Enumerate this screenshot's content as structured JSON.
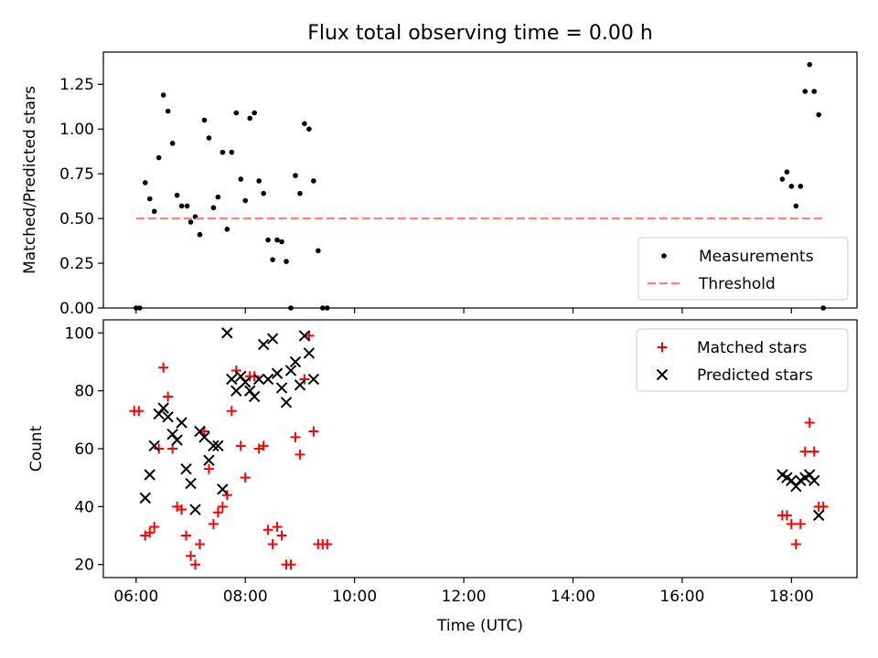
{
  "title": "Flux total observing time = 0.00 h",
  "colors": {
    "measurements": "#000000",
    "threshold": "#ff7f7f",
    "matched": "#ff0000",
    "predicted": "#000000"
  },
  "chart_data": [
    {
      "type": "scatter",
      "title": "Flux total observing time = 0.00 h",
      "ylabel": "Matched/Predicted stars",
      "xlabel": "",
      "xlim": [
        "05:24",
        "19:12"
      ],
      "ylim": [
        0,
        1.43
      ],
      "yticks": [
        "0.00",
        "0.25",
        "0.50",
        "0.75",
        "1.00",
        "1.25"
      ],
      "legend_position": "lower-right",
      "series": [
        {
          "name": "Measurements",
          "marker": "dot",
          "points": [
            [
              "06:00",
              0.0
            ],
            [
              "06:04",
              0.0
            ],
            [
              "06:10",
              0.7
            ],
            [
              "06:15",
              0.61
            ],
            [
              "06:20",
              0.54
            ],
            [
              "06:25",
              0.84
            ],
            [
              "06:30",
              1.19
            ],
            [
              "06:35",
              1.1
            ],
            [
              "06:40",
              0.92
            ],
            [
              "06:45",
              0.63
            ],
            [
              "06:50",
              0.57
            ],
            [
              "06:56",
              0.57
            ],
            [
              "07:00",
              0.48
            ],
            [
              "07:05",
              0.51
            ],
            [
              "07:10",
              0.41
            ],
            [
              "07:15",
              1.05
            ],
            [
              "07:20",
              0.95
            ],
            [
              "07:25",
              0.56
            ],
            [
              "07:30",
              0.62
            ],
            [
              "07:35",
              0.87
            ],
            [
              "07:40",
              0.44
            ],
            [
              "07:45",
              0.87
            ],
            [
              "07:50",
              1.09
            ],
            [
              "07:55",
              0.72
            ],
            [
              "08:00",
              0.6
            ],
            [
              "08:05",
              1.06
            ],
            [
              "08:10",
              1.09
            ],
            [
              "08:15",
              0.71
            ],
            [
              "08:20",
              0.64
            ],
            [
              "08:25",
              0.38
            ],
            [
              "08:30",
              0.27
            ],
            [
              "08:35",
              0.38
            ],
            [
              "08:40",
              0.37
            ],
            [
              "08:45",
              0.26
            ],
            [
              "08:50",
              0.0
            ],
            [
              "08:55",
              0.74
            ],
            [
              "09:00",
              0.64
            ],
            [
              "09:05",
              1.03
            ],
            [
              "09:10",
              1.0
            ],
            [
              "09:15",
              0.71
            ],
            [
              "09:20",
              0.32
            ],
            [
              "09:25",
              0.0
            ],
            [
              "09:30",
              0.0
            ],
            [
              "17:50",
              0.72
            ],
            [
              "17:55",
              0.76
            ],
            [
              "18:00",
              0.68
            ],
            [
              "18:05",
              0.57
            ],
            [
              "18:10",
              0.68
            ],
            [
              "18:15",
              1.21
            ],
            [
              "18:20",
              1.36
            ],
            [
              "18:25",
              1.21
            ],
            [
              "18:30",
              1.08
            ],
            [
              "18:35",
              0.0
            ]
          ]
        },
        {
          "name": "Threshold",
          "style": "dashed",
          "points": [
            [
              "06:00",
              0.5
            ],
            [
              "18:35",
              0.5
            ]
          ]
        }
      ]
    },
    {
      "type": "scatter",
      "title": "",
      "ylabel": "Count",
      "xlabel": "Time (UTC)",
      "xlim": [
        "05:24",
        "19:12"
      ],
      "ylim": [
        15.5,
        104.5
      ],
      "yticks": [
        "20",
        "40",
        "60",
        "80",
        "100"
      ],
      "xticks": [
        "06:00",
        "08:00",
        "10:00",
        "12:00",
        "14:00",
        "16:00",
        "18:00"
      ],
      "legend_position": "top-right",
      "series": [
        {
          "name": "Matched stars",
          "marker": "plus",
          "points": [
            [
              "05:58",
              73
            ],
            [
              "06:03",
              73
            ],
            [
              "06:10",
              30
            ],
            [
              "06:15",
              31
            ],
            [
              "06:20",
              33
            ],
            [
              "06:25",
              60
            ],
            [
              "06:30",
              88
            ],
            [
              "06:35",
              78
            ],
            [
              "06:40",
              60
            ],
            [
              "06:45",
              40
            ],
            [
              "06:50",
              39
            ],
            [
              "06:55",
              30
            ],
            [
              "07:00",
              23
            ],
            [
              "07:05",
              20
            ],
            [
              "07:10",
              27
            ],
            [
              "07:15",
              66
            ],
            [
              "07:20",
              53
            ],
            [
              "07:25",
              34
            ],
            [
              "07:30",
              38
            ],
            [
              "07:35",
              40
            ],
            [
              "07:40",
              44
            ],
            [
              "07:45",
              73
            ],
            [
              "07:50",
              87
            ],
            [
              "07:55",
              61
            ],
            [
              "08:00",
              50
            ],
            [
              "08:05",
              85
            ],
            [
              "08:10",
              85
            ],
            [
              "08:15",
              60
            ],
            [
              "08:20",
              61
            ],
            [
              "08:25",
              32
            ],
            [
              "08:30",
              27
            ],
            [
              "08:35",
              33
            ],
            [
              "08:40",
              30
            ],
            [
              "08:45",
              20
            ],
            [
              "08:50",
              20
            ],
            [
              "08:55",
              64
            ],
            [
              "09:00",
              58
            ],
            [
              "09:05",
              84
            ],
            [
              "09:10",
              99
            ],
            [
              "09:15",
              66
            ],
            [
              "09:20",
              27
            ],
            [
              "09:25",
              27
            ],
            [
              "09:30",
              27
            ],
            [
              "17:50",
              37
            ],
            [
              "17:55",
              37
            ],
            [
              "18:00",
              34
            ],
            [
              "18:05",
              27
            ],
            [
              "18:10",
              34
            ],
            [
              "18:15",
              59
            ],
            [
              "18:20",
              69
            ],
            [
              "18:25",
              59
            ],
            [
              "18:30",
              40
            ],
            [
              "18:35",
              40
            ]
          ]
        },
        {
          "name": "Predicted stars",
          "marker": "x",
          "points": [
            [
              "06:10",
              43
            ],
            [
              "06:15",
              51
            ],
            [
              "06:20",
              61
            ],
            [
              "06:25",
              72
            ],
            [
              "06:30",
              74
            ],
            [
              "06:35",
              71
            ],
            [
              "06:40",
              65
            ],
            [
              "06:45",
              63
            ],
            [
              "06:50",
              69
            ],
            [
              "06:55",
              53
            ],
            [
              "07:00",
              48
            ],
            [
              "07:05",
              39
            ],
            [
              "07:10",
              66
            ],
            [
              "07:15",
              64
            ],
            [
              "07:20",
              56
            ],
            [
              "07:25",
              61
            ],
            [
              "07:30",
              61
            ],
            [
              "07:35",
              46
            ],
            [
              "07:40",
              100
            ],
            [
              "07:45",
              84
            ],
            [
              "07:50",
              80
            ],
            [
              "07:55",
              85
            ],
            [
              "08:00",
              83
            ],
            [
              "08:05",
              80
            ],
            [
              "08:10",
              78
            ],
            [
              "08:15",
              84
            ],
            [
              "08:20",
              96
            ],
            [
              "08:25",
              84
            ],
            [
              "08:30",
              98
            ],
            [
              "08:35",
              86
            ],
            [
              "08:40",
              81
            ],
            [
              "08:45",
              76
            ],
            [
              "08:50",
              87
            ],
            [
              "08:55",
              90
            ],
            [
              "09:00",
              82
            ],
            [
              "09:05",
              99
            ],
            [
              "09:10",
              93
            ],
            [
              "09:15",
              84
            ],
            [
              "17:50",
              51
            ],
            [
              "17:55",
              50
            ],
            [
              "18:00",
              49
            ],
            [
              "18:05",
              47
            ],
            [
              "18:10",
              49
            ],
            [
              "18:15",
              50
            ],
            [
              "18:20",
              51
            ],
            [
              "18:25",
              49
            ],
            [
              "18:30",
              37
            ]
          ]
        }
      ]
    }
  ]
}
